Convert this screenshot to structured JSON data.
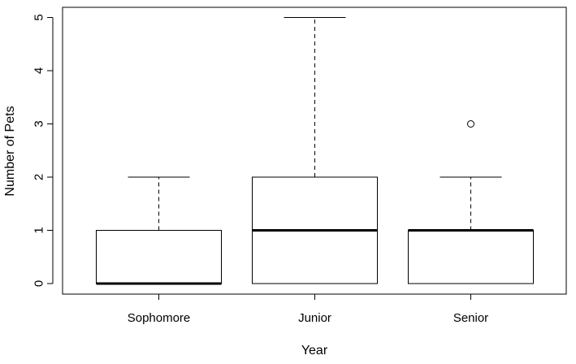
{
  "chart_data": {
    "type": "boxplot",
    "title": "",
    "xlabel": "Year",
    "ylabel": "Number of Pets",
    "ylim": [
      -0.2,
      5.2
    ],
    "yticks": [
      0,
      1,
      2,
      3,
      4,
      5
    ],
    "categories": [
      "Sophomore",
      "Junior",
      "Senior"
    ],
    "boxes": [
      {
        "category": "Sophomore",
        "whisker_low": 0,
        "q1": 0,
        "median": 0,
        "q3": 1,
        "whisker_high": 2,
        "outliers": []
      },
      {
        "category": "Junior",
        "whisker_low": 0,
        "q1": 0,
        "median": 1,
        "q3": 2,
        "whisker_high": 5,
        "outliers": []
      },
      {
        "category": "Senior",
        "whisker_low": 0,
        "q1": 0,
        "median": 1,
        "q3": 1,
        "whisker_high": 2,
        "outliers": [
          3
        ]
      }
    ],
    "grid": false,
    "colors": {
      "stroke": "#000000",
      "fill": "#ffffff"
    }
  }
}
